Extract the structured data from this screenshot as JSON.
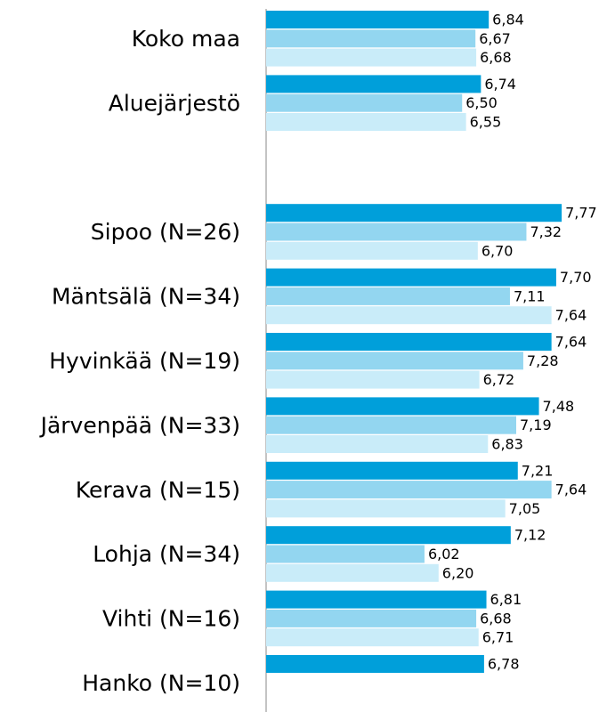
{
  "chart_data": {
    "type": "hbar",
    "categories": [
      "Koko maa",
      "Aluejärjestö",
      null,
      "Sipoo (N=26)",
      "Mäntsälä (N=34)",
      "Hyvinkää (N=19)",
      "Järvenpää (N=33)",
      "Kerava (N=15)",
      "Lohja (N=34)",
      "Vihti (N=16)",
      "Hanko (N=10)"
    ],
    "series": [
      {
        "color": "#009fda",
        "values": [
          6.84,
          6.74,
          null,
          7.77,
          7.7,
          7.64,
          7.48,
          7.21,
          7.12,
          6.81,
          6.78
        ],
        "value_labels": [
          "6,84",
          "6,74",
          null,
          "7,77",
          "7,70",
          "7,64",
          "7,48",
          "7,21",
          "7,12",
          "6,81",
          "6,78"
        ]
      },
      {
        "color": "#93d6f0",
        "values": [
          6.67,
          6.5,
          null,
          7.32,
          7.11,
          7.28,
          7.19,
          7.64,
          6.02,
          6.68,
          null
        ],
        "value_labels": [
          "6,67",
          "6,50",
          null,
          "7,32",
          "7,11",
          "7,28",
          "7,19",
          "7,64",
          "6,02",
          "6,68",
          null
        ]
      },
      {
        "color": "#c9ecf9",
        "values": [
          6.68,
          6.55,
          null,
          6.7,
          7.64,
          6.72,
          6.83,
          7.05,
          6.2,
          6.71,
          null
        ],
        "value_labels": [
          "6,68",
          "6,55",
          null,
          "6,70",
          "7,64",
          "6,72",
          "6,83",
          "7,05",
          "6,20",
          "6,71",
          null
        ]
      }
    ],
    "xlim": [
      4,
      8.45
    ]
  }
}
